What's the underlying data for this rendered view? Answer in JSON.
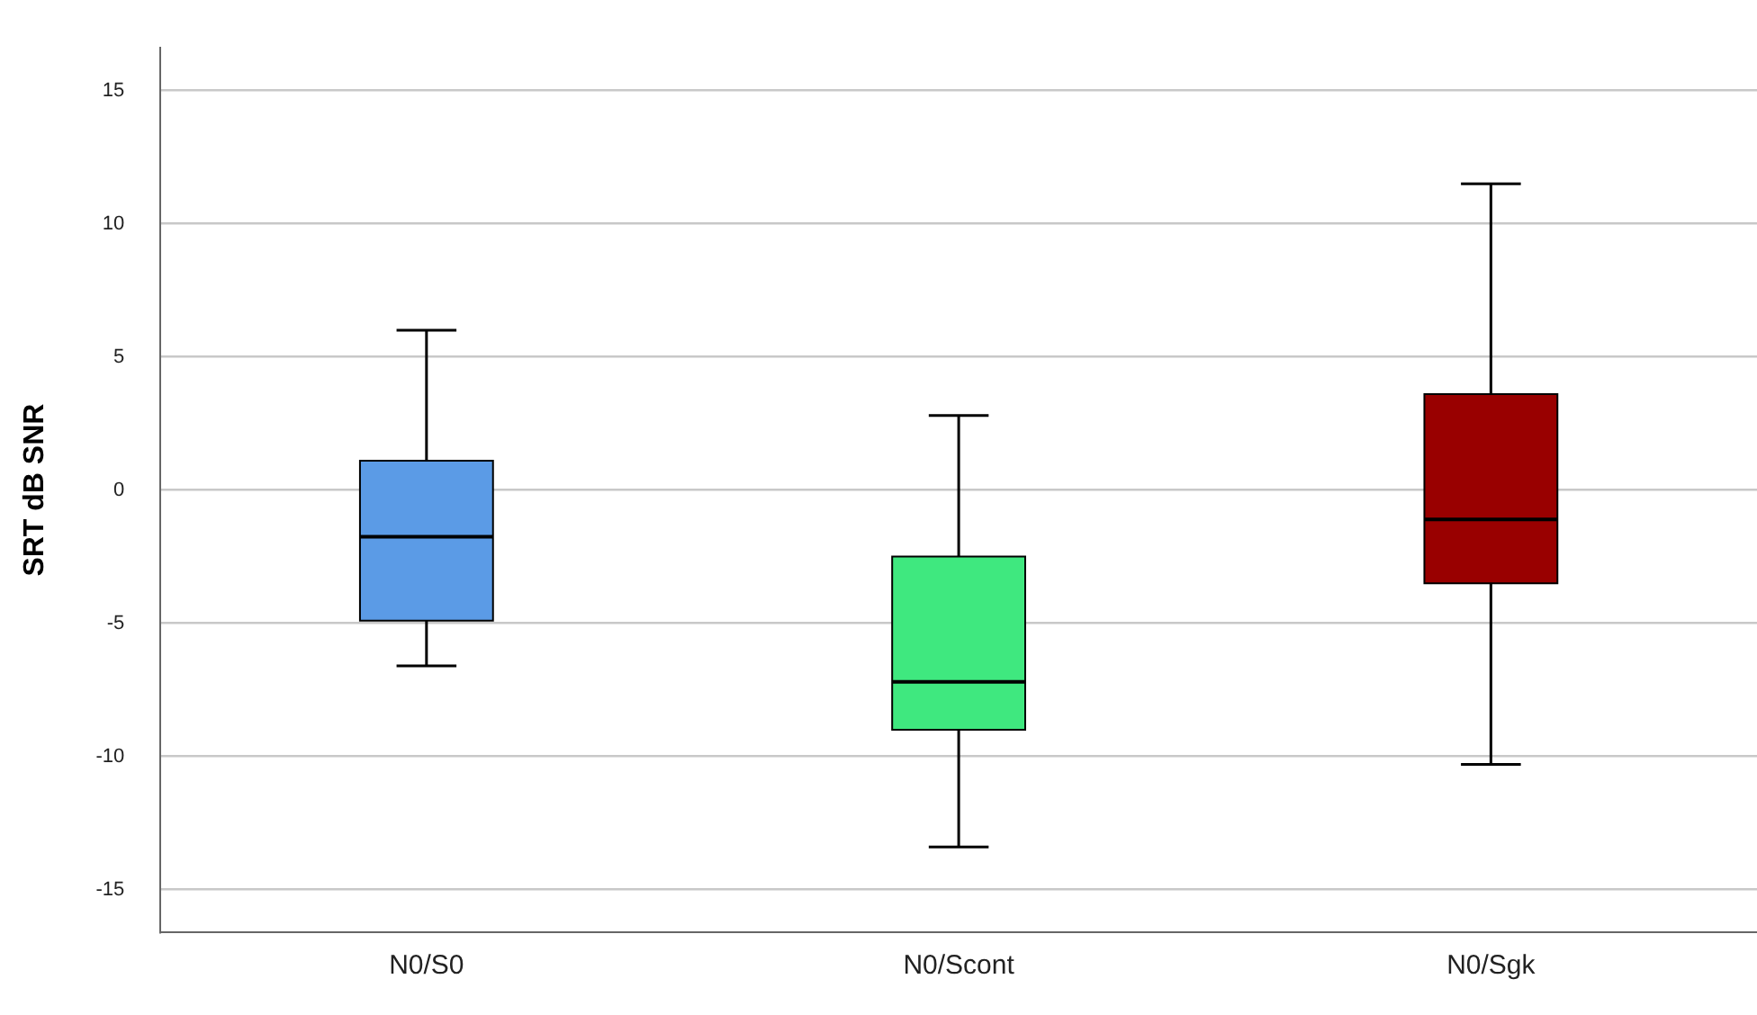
{
  "chart_data": {
    "type": "box",
    "ylabel": "SRT dB SNR",
    "categories": [
      "N0/S0",
      "N0/Scont",
      "N0/Sgk"
    ],
    "boxes": [
      {
        "low": -6.6,
        "q1": -4.9,
        "median": -1.75,
        "q3": 1.1,
        "high": 6.0
      },
      {
        "low": -13.4,
        "q1": -9.0,
        "median": -7.2,
        "q3": -2.5,
        "high": 2.8
      },
      {
        "low": -10.3,
        "q1": -3.5,
        "median": -1.1,
        "q3": 3.6,
        "high": 11.5
      }
    ],
    "colors": [
      "#5b9be6",
      "#3fe87f",
      "#990000"
    ],
    "ylim": [
      -16.6,
      16.6
    ],
    "yticks": [
      -15,
      -10,
      -5,
      0,
      5,
      10,
      15
    ],
    "grid": "y",
    "legend": false
  }
}
